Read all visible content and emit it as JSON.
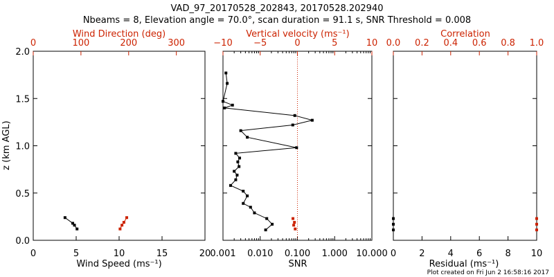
{
  "header": {
    "title": "VAD_97_20170528_202843, 20170528.202940",
    "subtitle": "Nbeams = 8, Elevation angle = 70.0°, scan duration = 91.1 s, SNR Threshold = 0.008"
  },
  "footer": {
    "credit": "Plot created on Fri Jun  2 16:58:16 2017"
  },
  "colors": {
    "primary": "#000000",
    "accent": "#cc2200"
  },
  "chart_data": [
    {
      "type": "scatter",
      "ylabel": "z (km AGL)",
      "ylim": [
        0,
        2.0
      ],
      "yticks": [
        "0.0",
        "0.5",
        "1.0",
        "1.5",
        "2.0"
      ],
      "x_bottom": {
        "label": "Wind Speed (ms⁻¹)",
        "range": [
          0,
          20
        ],
        "ticks": [
          "0",
          "5",
          "10",
          "15",
          "20"
        ]
      },
      "x_top": {
        "label": "Wind Direction (deg)",
        "range": [
          0,
          360
        ],
        "ticks": [
          "0",
          "100",
          "200",
          "300"
        ]
      },
      "series": [
        {
          "axis": "bottom",
          "color": "#000000",
          "connected": true,
          "points": [
            [
              3.7,
              0.24
            ],
            [
              4.6,
              0.18
            ],
            [
              4.8,
              0.16
            ],
            [
              5.1,
              0.12
            ]
          ]
        },
        {
          "axis": "top",
          "color": "#cc2200",
          "connected": true,
          "points": [
            [
              196,
              0.24
            ],
            [
              190,
              0.19
            ],
            [
              186,
              0.16
            ],
            [
              182,
              0.12
            ]
          ]
        }
      ]
    },
    {
      "type": "line",
      "ylim": [
        0,
        2.0
      ],
      "x_bottom": {
        "label": "SNR",
        "scale": "log",
        "range": [
          0.001,
          10
        ],
        "ticks": [
          "0.001",
          "0.010",
          "0.100",
          "1.000",
          "10.000"
        ]
      },
      "x_top": {
        "label": "Vertical velocity (ms⁻¹)",
        "range": [
          -10,
          10
        ],
        "ticks": [
          "−10",
          "−5",
          "0",
          "5",
          "10"
        ]
      },
      "reference_line": {
        "axis": "top",
        "value": 0,
        "style": "dotted"
      },
      "series": [
        {
          "axis": "bottom",
          "color": "#000000",
          "connected": true,
          "points": [
            [
              0.0012,
              1.77
            ],
            [
              0.0013,
              1.66
            ],
            [
              0.001,
              1.47
            ],
            [
              0.0018,
              1.43
            ],
            [
              0.0011,
              1.4
            ],
            [
              0.085,
              1.32
            ],
            [
              0.25,
              1.27
            ],
            [
              0.075,
              1.22
            ],
            [
              0.003,
              1.16
            ],
            [
              0.0045,
              1.09
            ],
            [
              0.095,
              0.98
            ],
            [
              0.0022,
              0.92
            ],
            [
              0.0028,
              0.87
            ],
            [
              0.0025,
              0.83
            ],
            [
              0.0027,
              0.78
            ],
            [
              0.002,
              0.73
            ],
            [
              0.0024,
              0.69
            ],
            [
              0.0022,
              0.64
            ],
            [
              0.0016,
              0.58
            ],
            [
              0.0035,
              0.52
            ],
            [
              0.0045,
              0.47
            ],
            [
              0.0035,
              0.39
            ],
            [
              0.0055,
              0.35
            ],
            [
              0.007,
              0.29
            ],
            [
              0.015,
              0.23
            ],
            [
              0.021,
              0.17
            ],
            [
              0.014,
              0.11
            ]
          ]
        },
        {
          "axis": "top",
          "color": "#cc2200",
          "connected": false,
          "points": [
            [
              -0.6,
              0.23
            ],
            [
              -0.4,
              0.19
            ],
            [
              -0.5,
              0.16
            ],
            [
              -0.3,
              0.12
            ]
          ]
        }
      ]
    },
    {
      "type": "scatter",
      "ylim": [
        0,
        2.0
      ],
      "x_bottom": {
        "label": "Residual (ms⁻¹)",
        "range": [
          0,
          10
        ],
        "ticks": [
          "0",
          "2",
          "4",
          "6",
          "8",
          "10"
        ]
      },
      "x_top": {
        "label": "Correlation",
        "range": [
          0,
          1.0
        ],
        "ticks": [
          "0.0",
          "0.2",
          "0.4",
          "0.6",
          "0.8",
          "1.0"
        ]
      },
      "series": [
        {
          "axis": "bottom",
          "color": "#000000",
          "connected": false,
          "points": [
            [
              0,
              0.23
            ],
            [
              0,
              0.17
            ],
            [
              0,
              0.11
            ]
          ]
        },
        {
          "axis": "top",
          "color": "#cc2200",
          "connected": false,
          "points": [
            [
              1.0,
              0.23
            ],
            [
              1.0,
              0.17
            ],
            [
              1.0,
              0.11
            ]
          ]
        }
      ]
    }
  ]
}
